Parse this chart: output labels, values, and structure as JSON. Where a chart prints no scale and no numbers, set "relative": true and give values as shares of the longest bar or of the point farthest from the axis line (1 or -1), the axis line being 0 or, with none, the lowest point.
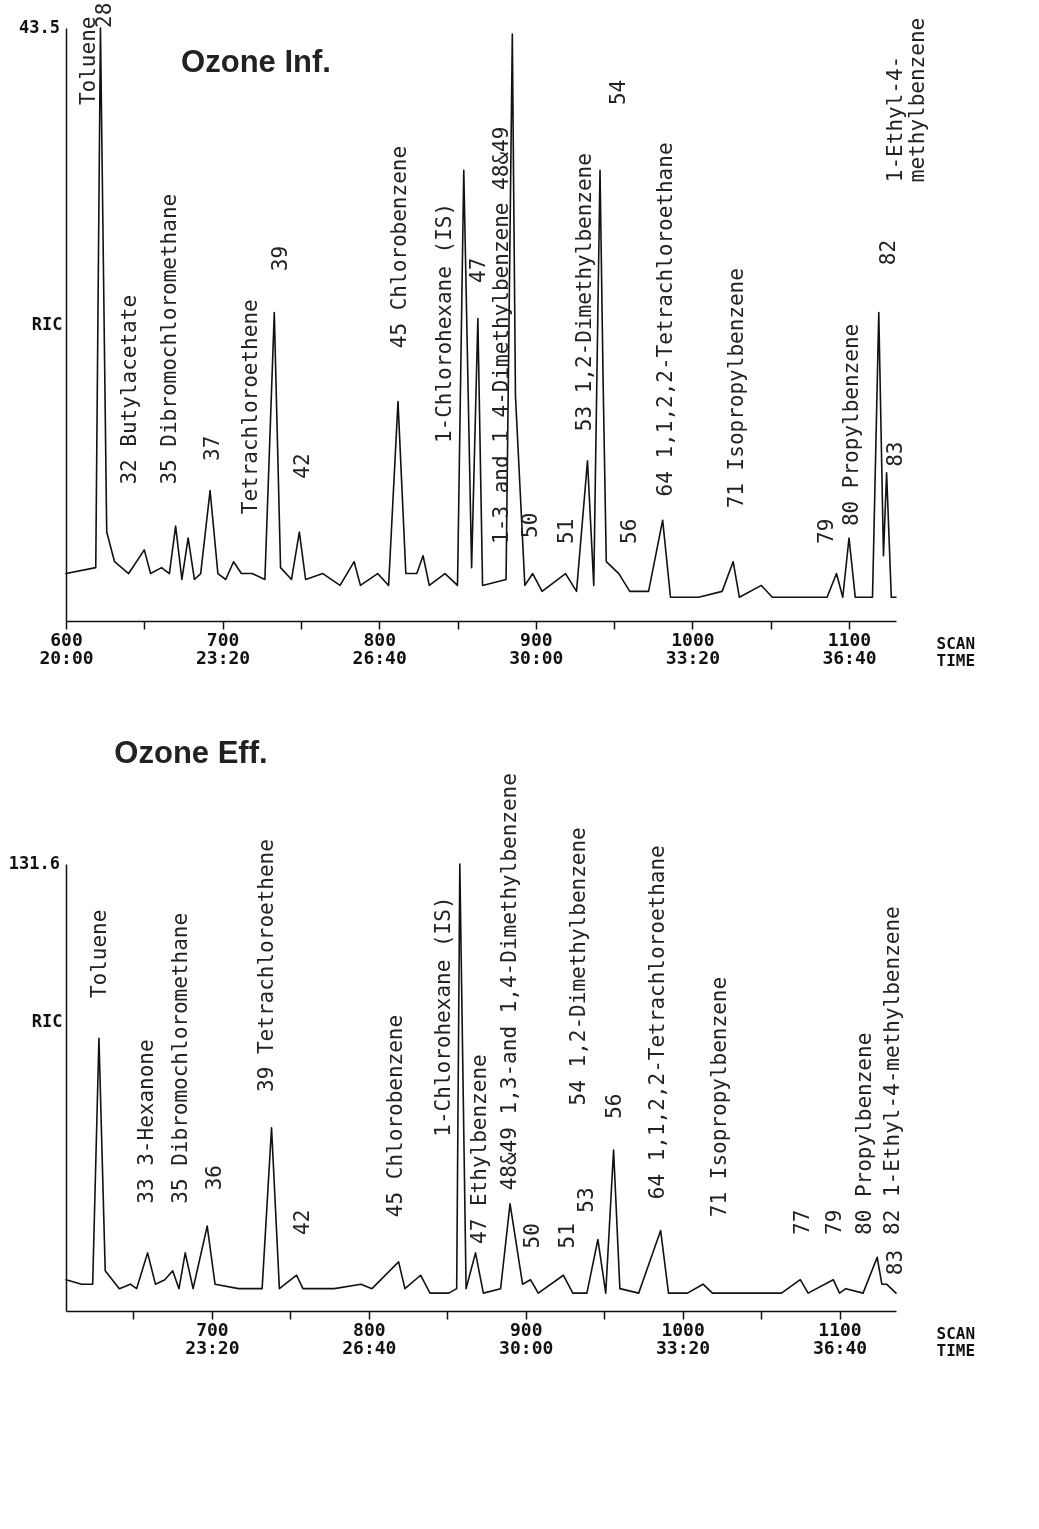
{
  "chart_data": [
    {
      "type": "line",
      "title": "Ozone Inf.",
      "xlabel": "SCAN",
      "x2label": "TIME",
      "ylabel": "RIC",
      "relative": true,
      "xlim": [
        600,
        1130
      ],
      "xticks": [
        600,
        {
          "value": 650,
          "label": null
        },
        700,
        {
          "value": 750,
          "label": null
        },
        800,
        {
          "value": 850,
          "label": null
        },
        900,
        {
          "value": 950,
          "label": null
        },
        1000,
        {
          "value": 1050,
          "label": null
        },
        1100
      ],
      "x2lim": [
        1200,
        2260
      ],
      "x2ticks": [
        {
          "value": 1200,
          "label": "20:00"
        },
        {
          "value": 1400,
          "label": "23:20"
        },
        {
          "value": 1600,
          "label": "26:40"
        },
        {
          "value": 1800,
          "label": "30:00"
        },
        {
          "value": 2000,
          "label": "33:20"
        },
        {
          "value": 2200,
          "label": "36:40"
        }
      ],
      "x": [
        600,
        619,
        622,
        626,
        631,
        640,
        650,
        654,
        661,
        666,
        670,
        674,
        678,
        682,
        686,
        692,
        697,
        702,
        707,
        712,
        719,
        727,
        733,
        737,
        744,
        749,
        753,
        764,
        775,
        784,
        788,
        799,
        806,
        812,
        817,
        824,
        828,
        832,
        842,
        850,
        854,
        859,
        863,
        866,
        881,
        885,
        887,
        893,
        898,
        904,
        919,
        926,
        933,
        937,
        941,
        943,
        945,
        953,
        960,
        972,
        981,
        986,
        1004,
        1019,
        1026,
        1030,
        1044,
        1051,
        1071,
        1086,
        1092,
        1096,
        1100,
        1104,
        1115,
        1119,
        1122,
        1124,
        1127,
        1130
      ],
      "series": [
        {
          "color": "#111111",
          "values": [
            0.08,
            0.09,
            1.0,
            0.15,
            0.1,
            0.08,
            0.12,
            0.08,
            0.09,
            0.08,
            0.16,
            0.07,
            0.14,
            0.07,
            0.08,
            0.22,
            0.08,
            0.07,
            0.1,
            0.08,
            0.08,
            0.07,
            0.52,
            0.09,
            0.07,
            0.15,
            0.07,
            0.08,
            0.06,
            0.1,
            0.06,
            0.08,
            0.06,
            0.37,
            0.08,
            0.08,
            0.11,
            0.06,
            0.08,
            0.06,
            0.76,
            0.09,
            0.51,
            0.06,
            0.07,
            0.99,
            0.38,
            0.06,
            0.08,
            0.05,
            0.08,
            0.05,
            0.27,
            0.06,
            0.76,
            0.4,
            0.1,
            0.08,
            0.05,
            0.05,
            0.17,
            0.04,
            0.04,
            0.05,
            0.1,
            0.04,
            0.06,
            0.04,
            0.04,
            0.04,
            0.08,
            0.04,
            0.14,
            0.04,
            0.04,
            0.52,
            0.11,
            0.25,
            0.04,
            0.04
          ]
        }
      ],
      "annotations": [
        "43.5",
        "Toluene",
        "28",
        "32 Butylacetate",
        "35 Dibromochloromethane",
        "37",
        "Tetrachloroethene",
        "39",
        "42",
        "45 Chlorobenzene",
        "1-Chlorohexane (IS)",
        "47",
        "1-3 and 1 4-Dimethylbenzene 48&49",
        "50",
        "51",
        "53 1,2-Dimethylbenzene",
        "54",
        "56",
        "64 1,1,2,2-Tetrachloroethane",
        "71 Isopropylbenzene",
        "79",
        "80 Propylbenzene",
        "82",
        "1-Ethyl-4-\nmethylbenzene",
        "83"
      ]
    },
    {
      "type": "line",
      "title": "Ozone Eff.",
      "xlabel": "SCAN",
      "x2label": "TIME",
      "ylabel": "RIC",
      "relative": true,
      "xlim": [
        607,
        1136
      ],
      "xticks": [
        {
          "value": 650,
          "label": null
        },
        700,
        {
          "value": 750,
          "label": null
        },
        800,
        {
          "value": 850,
          "label": null
        },
        900,
        {
          "value": 950,
          "label": null
        },
        1000,
        {
          "value": 1050,
          "label": null
        },
        1100
      ],
      "x2lim": [
        1214,
        2272
      ],
      "x2ticks": [
        {
          "value": 1400,
          "label": "23:20"
        },
        {
          "value": 1600,
          "label": "26:40"
        },
        {
          "value": 1800,
          "label": "30:00"
        },
        {
          "value": 2000,
          "label": "33:20"
        },
        {
          "value": 2200,
          "label": "36:40"
        }
      ],
      "x": [
        607,
        617,
        624,
        628,
        632,
        641,
        648,
        652,
        659,
        664,
        670,
        675,
        679,
        683,
        688,
        697,
        702,
        717,
        732,
        738,
        743,
        754,
        758,
        778,
        795,
        802,
        819,
        823,
        833,
        839,
        851,
        856,
        858,
        862,
        868,
        873,
        884,
        890,
        898,
        903,
        908,
        924,
        930,
        939,
        946,
        951,
        956,
        960,
        972,
        986,
        991,
        1003,
        1013,
        1019,
        1033,
        1048,
        1063,
        1075,
        1080,
        1096,
        1100,
        1104,
        1115,
        1124,
        1127,
        1130,
        1136
      ],
      "series": [
        {
          "color": "#111111",
          "values": [
            0.07,
            0.06,
            0.06,
            0.61,
            0.09,
            0.05,
            0.06,
            0.05,
            0.13,
            0.06,
            0.07,
            0.09,
            0.05,
            0.13,
            0.05,
            0.19,
            0.06,
            0.05,
            0.05,
            0.41,
            0.05,
            0.08,
            0.05,
            0.05,
            0.06,
            0.05,
            0.11,
            0.05,
            0.08,
            0.04,
            0.04,
            0.05,
            1.0,
            0.05,
            0.13,
            0.04,
            0.05,
            0.24,
            0.06,
            0.07,
            0.04,
            0.08,
            0.04,
            0.04,
            0.16,
            0.04,
            0.36,
            0.05,
            0.04,
            0.18,
            0.04,
            0.04,
            0.06,
            0.04,
            0.04,
            0.04,
            0.04,
            0.07,
            0.04,
            0.07,
            0.04,
            0.05,
            0.04,
            0.12,
            0.06,
            0.06,
            0.04
          ]
        }
      ],
      "annotations": [
        "131.6",
        "Toluene",
        "33 3-Hexanone",
        "35 Dibromochloromethane",
        "36",
        "39 Tetrachloroethene",
        "42",
        "45 Chlorobenzene",
        "1-Chlorohexane (IS)",
        "47 Ethylbenzene",
        "48&49 1,3-and 1,4-Dimethylbenzene",
        "50",
        "51",
        "53",
        "54 1,2-Dimethylbenzene",
        "56",
        "64 1,1,2,2-Tetrachloroethane",
        "71 Isopropylbenzene",
        "77",
        "79",
        "80 Propylbenzene",
        "82 1-Ethyl-4-methylbenzene",
        "83"
      ]
    }
  ]
}
